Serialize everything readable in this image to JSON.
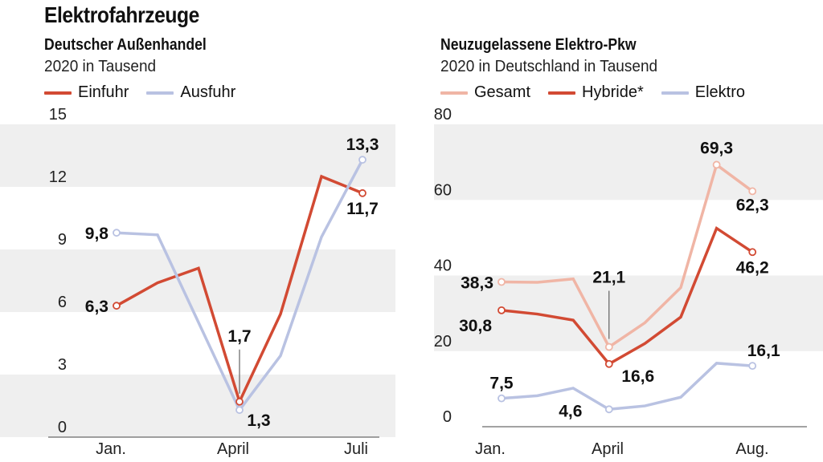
{
  "title": "Elektrofahrzeuge",
  "colors": {
    "red": "#d24a33",
    "lightred": "#f0b5a5",
    "blue": "#b9c2e2",
    "band": "#efefef"
  },
  "chart_data": [
    {
      "type": "line",
      "title": "Deutscher Außenhandel",
      "subtitle": "2020 in Tausend",
      "x": [
        1,
        2,
        3,
        4,
        5,
        6,
        7
      ],
      "xtick_labels": {
        "1": "Jan.",
        "4": "April",
        "7": "Juli"
      },
      "ylim": [
        0,
        15
      ],
      "yticks": [
        0,
        3,
        6,
        9,
        12,
        15
      ],
      "legend": "top-left",
      "series": [
        {
          "name": "Einfuhr",
          "color": "#d24a33",
          "values": [
            6.3,
            7.4,
            8.1,
            1.7,
            5.9,
            12.5,
            11.7
          ]
        },
        {
          "name": "Ausfuhr",
          "color": "#b9c2e2",
          "values": [
            9.8,
            9.7,
            5.5,
            1.3,
            3.9,
            9.6,
            13.3
          ]
        }
      ],
      "annotations": [
        "6,3",
        "9,8",
        "1,7",
        "1,3",
        "13,3",
        "11,7"
      ]
    },
    {
      "type": "line",
      "title": "Neuzugelassene Elektro-Pkw",
      "subtitle": "2020 in Deutschland in Tausend",
      "x": [
        1,
        2,
        3,
        4,
        5,
        6,
        7,
        8
      ],
      "xtick_labels": {
        "1": "Jan.",
        "4": "April",
        "8": "Aug."
      },
      "ylim": [
        0,
        80
      ],
      "yticks": [
        0,
        20,
        40,
        60,
        80
      ],
      "legend": "top-left",
      "series": [
        {
          "name": "Gesamt",
          "color": "#f0b5a5",
          "values": [
            38.3,
            38.2,
            39.1,
            21.1,
            27.5,
            36.8,
            69.3,
            62.3
          ]
        },
        {
          "name": "Hybride*",
          "color": "#d24a33",
          "values": [
            30.8,
            29.8,
            28.2,
            16.6,
            22.0,
            29.0,
            52.5,
            46.2
          ]
        },
        {
          "name": "Elektro",
          "color": "#b9c2e2",
          "values": [
            7.5,
            8.2,
            10.2,
            4.6,
            5.5,
            7.8,
            16.8,
            16.1
          ]
        }
      ],
      "annotations": [
        "38,3",
        "30,8",
        "7,5",
        "21,1",
        "16,6",
        "4,6",
        "69,3",
        "62,3",
        "46,2",
        "16,1"
      ]
    }
  ]
}
